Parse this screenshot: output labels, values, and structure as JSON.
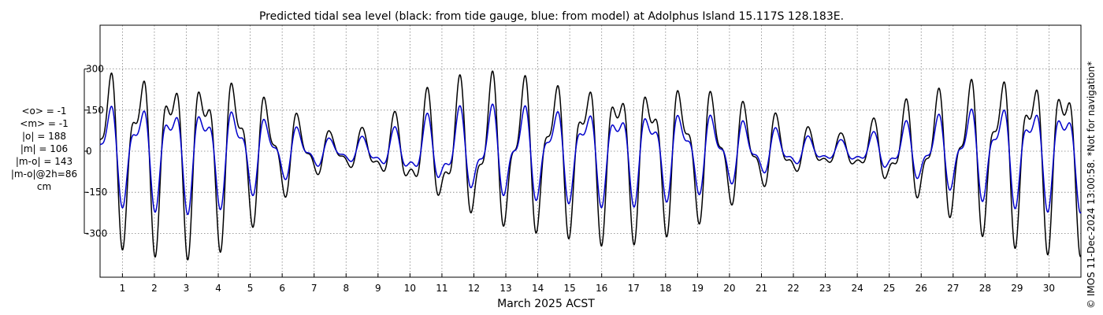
{
  "title": "Predicted tidal sea level (black: from tide gauge, blue: from model) at Adolphus Island 15.117S 128.183E.",
  "credit": "© IMOS 11-Dec-2024 13:00:58. *Not for navigation*",
  "stats": [
    "<o> = -1",
    "<m> = -1",
    "|o| = 188",
    "|m| = 106",
    "|m-o| = 143",
    "|m-o|@2h=86",
    "cm"
  ],
  "colors": {
    "observed": "#000000",
    "model": "#0000cc",
    "grid": "#7f7f7f"
  },
  "chart_data": {
    "type": "line",
    "xlabel": "March 2025 ACST",
    "x_range_days": [
      0.3,
      31.0
    ],
    "ylim": [
      -460,
      460
    ],
    "y_ticks": [
      300,
      150,
      0,
      -150,
      -300
    ],
    "y_tick_labels": [
      "300",
      "150",
      "0",
      "-150",
      "-300"
    ],
    "x_ticks": [
      1,
      2,
      3,
      4,
      5,
      6,
      7,
      8,
      9,
      10,
      11,
      12,
      13,
      14,
      15,
      16,
      17,
      18,
      19,
      20,
      21,
      22,
      23,
      24,
      25,
      26,
      27,
      28,
      29,
      30
    ],
    "x_tick_labels": [
      "1",
      "2",
      "3",
      "4",
      "5",
      "6",
      "7",
      "8",
      "9",
      "10",
      "11",
      "12",
      "13",
      "14",
      "15",
      "16",
      "17",
      "18",
      "19",
      "20",
      "21",
      "22",
      "23",
      "24",
      "25",
      "26",
      "27",
      "28",
      "29",
      "30"
    ],
    "grid": true,
    "series": [
      {
        "name": "from tide gauge",
        "color": "black",
        "envelope_amplitude_cm": [
          [
            0.3,
            330
          ],
          [
            1.5,
            350
          ],
          [
            3.0,
            360
          ],
          [
            4.5,
            330
          ],
          [
            5.5,
            220
          ],
          [
            6.5,
            140
          ],
          [
            7.5,
            70
          ],
          [
            8.5,
            80
          ],
          [
            9.5,
            130
          ],
          [
            10.5,
            210
          ],
          [
            11.5,
            260
          ],
          [
            12.5,
            290
          ],
          [
            13.5,
            300
          ],
          [
            14.5,
            290
          ],
          [
            15.5,
            310
          ],
          [
            16.5,
            320
          ],
          [
            17.5,
            300
          ],
          [
            18.5,
            280
          ],
          [
            19.5,
            240
          ],
          [
            20.5,
            180
          ],
          [
            21.5,
            130
          ],
          [
            22.5,
            80
          ],
          [
            23.5,
            60
          ],
          [
            24.5,
            110
          ],
          [
            25.5,
            180
          ],
          [
            26.5,
            230
          ],
          [
            27.5,
            290
          ],
          [
            28.5,
            320
          ],
          [
            29.5,
            340
          ],
          [
            31.0,
            350
          ]
        ]
      },
      {
        "name": "from model",
        "color": "blue",
        "envelope_amplitude_cm": [
          [
            0.3,
            190
          ],
          [
            1.5,
            200
          ],
          [
            3.0,
            210
          ],
          [
            4.5,
            190
          ],
          [
            5.5,
            130
          ],
          [
            6.5,
            90
          ],
          [
            7.5,
            45
          ],
          [
            8.5,
            50
          ],
          [
            9.5,
            80
          ],
          [
            10.5,
            125
          ],
          [
            11.5,
            155
          ],
          [
            12.5,
            170
          ],
          [
            13.5,
            180
          ],
          [
            14.5,
            175
          ],
          [
            15.5,
            185
          ],
          [
            16.5,
            190
          ],
          [
            17.5,
            180
          ],
          [
            18.5,
            165
          ],
          [
            19.5,
            145
          ],
          [
            20.5,
            110
          ],
          [
            21.5,
            80
          ],
          [
            22.5,
            50
          ],
          [
            23.5,
            38
          ],
          [
            24.5,
            65
          ],
          [
            25.5,
            105
          ],
          [
            26.5,
            135
          ],
          [
            27.5,
            170
          ],
          [
            28.5,
            190
          ],
          [
            29.5,
            200
          ],
          [
            31.0,
            205
          ]
        ]
      }
    ]
  }
}
